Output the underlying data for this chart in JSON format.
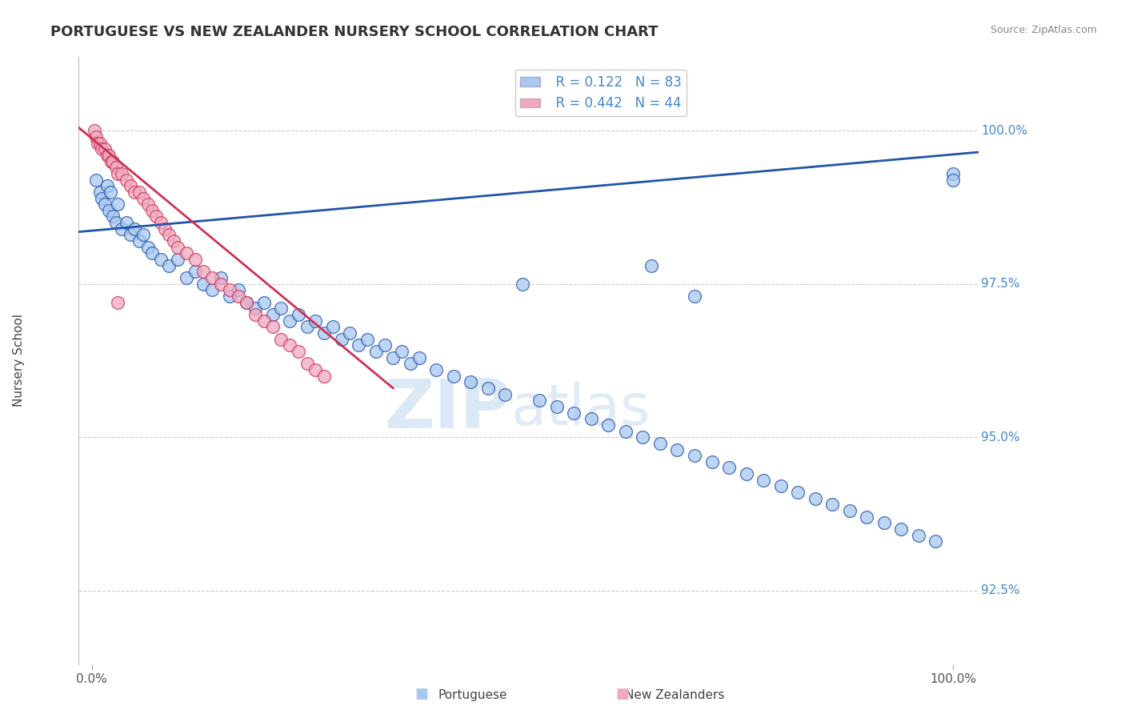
{
  "title": "PORTUGUESE VS NEW ZEALANDER NURSERY SCHOOL CORRELATION CHART",
  "source_text": "Source: ZipAtlas.com",
  "ylabel": "Nursery School",
  "legend_label1": "Portuguese",
  "legend_label2": "New Zealanders",
  "r1": 0.122,
  "n1": 83,
  "r2": 0.442,
  "n2": 44,
  "yticks": [
    92.5,
    95.0,
    97.5,
    100.0
  ],
  "ytick_labels": [
    "92.5%",
    "95.0%",
    "97.5%",
    "100.0%"
  ],
  "ymin": 91.3,
  "ymax": 101.2,
  "xmin": -1.5,
  "xmax": 103.0,
  "color_blue": "#A8C8F0",
  "color_pink": "#F0A8C0",
  "color_line_blue": "#2255AA",
  "color_line_pink": "#CC3355",
  "color_title": "#333333",
  "color_ytick": "#4488CC",
  "color_source": "#888888",
  "background_color": "#FFFFFF",
  "blue_x": [
    0.5,
    1.0,
    1.2,
    1.5,
    1.8,
    2.0,
    2.2,
    2.5,
    2.8,
    3.0,
    3.5,
    4.0,
    4.5,
    5.0,
    5.5,
    6.0,
    6.5,
    7.0,
    8.0,
    9.0,
    10.0,
    11.0,
    12.0,
    13.0,
    14.0,
    15.0,
    16.0,
    17.0,
    18.0,
    19.0,
    20.0,
    21.0,
    22.0,
    23.0,
    24.0,
    25.0,
    26.0,
    27.0,
    28.0,
    29.0,
    30.0,
    31.0,
    32.0,
    33.0,
    34.0,
    35.0,
    36.0,
    37.0,
    38.0,
    40.0,
    42.0,
    44.0,
    46.0,
    48.0,
    50.0,
    52.0,
    54.0,
    56.0,
    58.0,
    60.0,
    62.0,
    64.0,
    66.0,
    68.0,
    70.0,
    72.0,
    74.0,
    76.0,
    78.0,
    80.0,
    82.0,
    84.0,
    86.0,
    88.0,
    90.0,
    92.0,
    94.0,
    96.0,
    98.0,
    100.0,
    65.0,
    70.0,
    100.0
  ],
  "blue_y": [
    99.2,
    99.0,
    98.9,
    98.8,
    99.1,
    98.7,
    99.0,
    98.6,
    98.5,
    98.8,
    98.4,
    98.5,
    98.3,
    98.4,
    98.2,
    98.3,
    98.1,
    98.0,
    97.9,
    97.8,
    97.9,
    97.6,
    97.7,
    97.5,
    97.4,
    97.6,
    97.3,
    97.4,
    97.2,
    97.1,
    97.2,
    97.0,
    97.1,
    96.9,
    97.0,
    96.8,
    96.9,
    96.7,
    96.8,
    96.6,
    96.7,
    96.5,
    96.6,
    96.4,
    96.5,
    96.3,
    96.4,
    96.2,
    96.3,
    96.1,
    96.0,
    95.9,
    95.8,
    95.7,
    97.5,
    95.6,
    95.5,
    95.4,
    95.3,
    95.2,
    95.1,
    95.0,
    94.9,
    94.8,
    94.7,
    94.6,
    94.5,
    94.4,
    94.3,
    94.2,
    94.1,
    94.0,
    93.9,
    93.8,
    93.7,
    93.6,
    93.5,
    93.4,
    93.3,
    99.3,
    97.8,
    97.3,
    99.2
  ],
  "pink_x": [
    0.3,
    0.5,
    0.7,
    1.0,
    1.2,
    1.5,
    1.8,
    2.0,
    2.3,
    2.5,
    2.8,
    3.0,
    3.5,
    4.0,
    4.5,
    5.0,
    5.5,
    6.0,
    6.5,
    7.0,
    7.5,
    8.0,
    8.5,
    9.0,
    9.5,
    10.0,
    11.0,
    12.0,
    13.0,
    14.0,
    15.0,
    16.0,
    17.0,
    18.0,
    19.0,
    20.0,
    21.0,
    22.0,
    23.0,
    24.0,
    25.0,
    26.0,
    27.0,
    3.0
  ],
  "pink_y": [
    100.0,
    99.9,
    99.8,
    99.8,
    99.7,
    99.7,
    99.6,
    99.6,
    99.5,
    99.5,
    99.4,
    99.3,
    99.3,
    99.2,
    99.1,
    99.0,
    99.0,
    98.9,
    98.8,
    98.7,
    98.6,
    98.5,
    98.4,
    98.3,
    98.2,
    98.1,
    98.0,
    97.9,
    97.7,
    97.6,
    97.5,
    97.4,
    97.3,
    97.2,
    97.0,
    96.9,
    96.8,
    96.6,
    96.5,
    96.4,
    96.2,
    96.1,
    96.0,
    97.2
  ],
  "blue_trendline_x": [
    -1.5,
    103.0
  ],
  "blue_trendline_y": [
    98.35,
    99.65
  ],
  "pink_trendline_x": [
    -1.5,
    35.0
  ],
  "pink_trendline_y": [
    100.05,
    95.8
  ],
  "watermark_zip": "ZIP",
  "watermark_atlas": "atlas"
}
